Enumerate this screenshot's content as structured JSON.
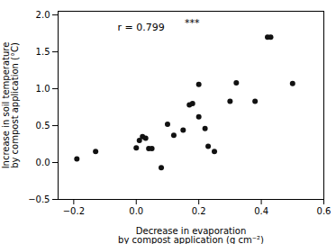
{
  "chart_data": {
    "type": "scatter",
    "x": [
      -0.19,
      -0.13,
      0.0,
      0.01,
      0.02,
      0.03,
      0.04,
      0.05,
      0.08,
      0.1,
      0.12,
      0.15,
      0.17,
      0.18,
      0.2,
      0.2,
      0.22,
      0.23,
      0.25,
      0.3,
      0.32,
      0.38,
      0.42,
      0.43,
      0.5
    ],
    "y": [
      0.05,
      0.15,
      0.2,
      0.3,
      0.35,
      0.33,
      0.19,
      0.19,
      -0.07,
      0.52,
      0.37,
      0.44,
      0.78,
      0.8,
      1.06,
      0.62,
      0.46,
      0.22,
      0.15,
      0.83,
      1.08,
      0.83,
      1.7,
      1.7,
      1.07
    ],
    "color": "#111111",
    "marker": "o",
    "xlim": [
      -0.25,
      0.6
    ],
    "ylim": [
      -0.5,
      2.05
    ],
    "xticks": [
      -0.2,
      0,
      0.2,
      0.4,
      0.6
    ],
    "yticks": [
      -0.5,
      0,
      0.5,
      1,
      1.5,
      2
    ],
    "xlabel": "Decrease in evaporation\nby compost application (g cm⁻²)",
    "ylabel": "Increase in soil temperature\nby compost application (°C)",
    "annotations": [
      {
        "text": "r = 0.799",
        "x": -0.06,
        "y": 1.88
      },
      {
        "text": "***",
        "x": 0.155,
        "y": 1.94
      }
    ],
    "grid": false
  }
}
